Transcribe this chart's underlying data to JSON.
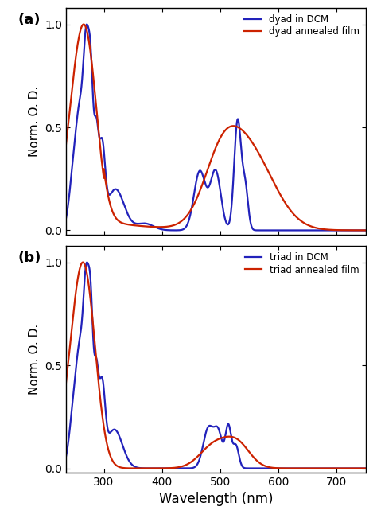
{
  "blue_color": "#2222bb",
  "red_color": "#cc2200",
  "xlabel": "Wavelength (nm)",
  "ylabel": "Norm. O. D.",
  "xlim": [
    235,
    750
  ],
  "ylim": [
    -0.02,
    1.08
  ],
  "yticks": [
    0.0,
    0.5,
    1.0
  ],
  "xticks": [
    300,
    400,
    500,
    600,
    700
  ],
  "panel_a_legend": [
    "dyad in DCM",
    "dyad annealed film"
  ],
  "panel_b_legend": [
    "triad in DCM",
    "triad annealed film"
  ],
  "label_a": "(a)",
  "label_b": "(b)"
}
